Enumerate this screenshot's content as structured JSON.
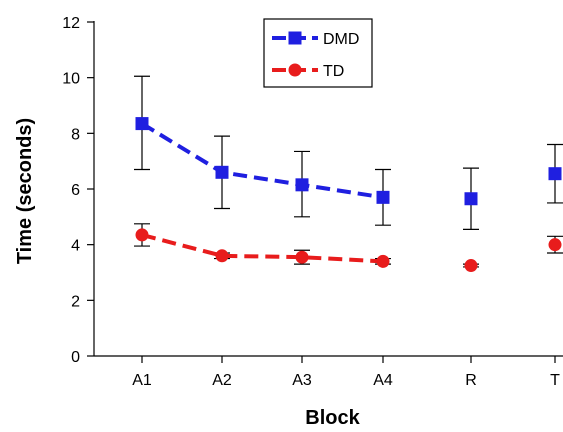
{
  "chart_data": {
    "type": "line",
    "categories": [
      "A1",
      "A2",
      "A3",
      "A4",
      "R",
      "T"
    ],
    "xlabel": "Block",
    "ylabel": "Time (seconds)",
    "ylim": [
      0,
      12
    ],
    "yticks": [
      0,
      2,
      4,
      6,
      8,
      10,
      12
    ],
    "grid": false,
    "legend_position": "top-center",
    "series": [
      {
        "name": "DMD",
        "color": "#1f1fe0",
        "marker": "square",
        "line_style": "dashed",
        "connected_through_index": 3,
        "values": [
          8.35,
          6.6,
          6.15,
          5.7,
          5.65,
          6.55
        ],
        "err_low": [
          6.7,
          5.3,
          5.0,
          4.7,
          4.55,
          5.5
        ],
        "err_high": [
          10.05,
          7.9,
          7.35,
          6.7,
          6.75,
          7.6
        ]
      },
      {
        "name": "TD",
        "color": "#e81c1c",
        "marker": "circle",
        "line_style": "dashed",
        "connected_through_index": 3,
        "values": [
          4.35,
          3.6,
          3.55,
          3.4,
          3.25,
          4.0
        ],
        "err_low": [
          3.95,
          3.5,
          3.3,
          3.3,
          3.2,
          3.7
        ],
        "err_high": [
          4.75,
          3.7,
          3.8,
          3.5,
          3.3,
          4.3
        ]
      }
    ]
  }
}
